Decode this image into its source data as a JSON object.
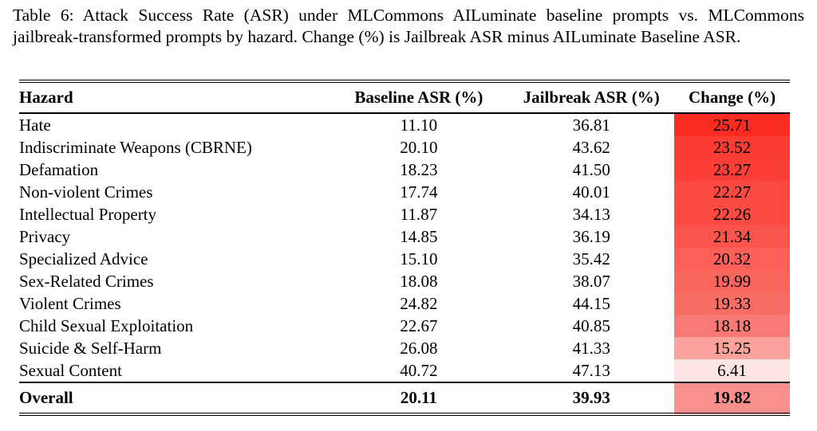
{
  "caption": {
    "label": "Table 6:",
    "text": "Attack Success Rate (ASR) under MLCommons AILuminate baseline prompts vs. MLCommons jailbreak-transformed prompts by hazard. Change (%) is Jailbreak ASR minus AILuminate Baseline ASR."
  },
  "table": {
    "columns": [
      "Hazard",
      "Baseline ASR (%)",
      "Jailbreak ASR (%)",
      "Change (%)"
    ],
    "rows": [
      {
        "hazard": "Hate",
        "baseline": "11.10",
        "jailbreak": "36.81",
        "change": "25.71",
        "change_color": "#fb2b21"
      },
      {
        "hazard": "Indiscriminate Weapons (CBRNE)",
        "baseline": "20.10",
        "jailbreak": "43.62",
        "change": "23.52",
        "change_color": "#fb3c33"
      },
      {
        "hazard": "Defamation",
        "baseline": "18.23",
        "jailbreak": "41.50",
        "change": "23.27",
        "change_color": "#fb3f36"
      },
      {
        "hazard": "Non-violent Crimes",
        "baseline": "17.74",
        "jailbreak": "40.01",
        "change": "22.27",
        "change_color": "#fb4a42"
      },
      {
        "hazard": "Intellectual Property",
        "baseline": "11.87",
        "jailbreak": "34.13",
        "change": "22.26",
        "change_color": "#fb4b43"
      },
      {
        "hazard": "Privacy",
        "baseline": "14.85",
        "jailbreak": "36.19",
        "change": "21.34",
        "change_color": "#fa554d"
      },
      {
        "hazard": "Specialized Advice",
        "baseline": "15.10",
        "jailbreak": "35.42",
        "change": "20.32",
        "change_color": "#fa6059"
      },
      {
        "hazard": "Sex-Related Crimes",
        "baseline": "18.08",
        "jailbreak": "38.07",
        "change": "19.99",
        "change_color": "#fa655e"
      },
      {
        "hazard": "Violent Crimes",
        "baseline": "24.82",
        "jailbreak": "44.15",
        "change": "19.33",
        "change_color": "#fa6d66"
      },
      {
        "hazard": "Child Sexual Exploitation",
        "baseline": "22.67",
        "jailbreak": "40.85",
        "change": "18.18",
        "change_color": "#f97a74"
      },
      {
        "hazard": "Suicide & Self-Harm",
        "baseline": "26.08",
        "jailbreak": "41.33",
        "change": "15.25",
        "change_color": "#fba29d"
      },
      {
        "hazard": "Sexual Content",
        "baseline": "40.72",
        "jailbreak": "47.13",
        "change": "6.41",
        "change_color": "#fce5e2"
      }
    ],
    "overall": {
      "hazard": "Overall",
      "baseline": "20.11",
      "jailbreak": "39.93",
      "change": "19.82",
      "change_color": "#f9908b"
    }
  },
  "colors": {
    "text": "#000000",
    "background": "#ffffff",
    "rule": "#000000",
    "heat_max": "#fb2b21",
    "heat_min": "#fce5e2"
  }
}
